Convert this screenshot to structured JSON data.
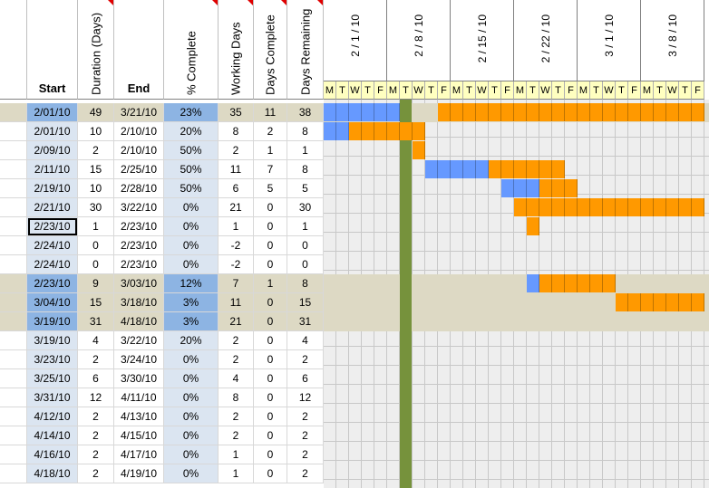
{
  "headers": {
    "start": "Start",
    "duration": "Duration (Days)",
    "end": "End",
    "pct_complete": "% Complete",
    "working_days": "Working Days",
    "days_complete": "Days Complete",
    "days_remaining": "Days Remaining"
  },
  "week_labels": [
    "2 / 1 / 10",
    "2 / 8 / 10",
    "2 / 15 / 10",
    "2 / 22 / 10",
    "3 / 1 / 10",
    "3 / 8 / 10"
  ],
  "day_letters": [
    "M",
    "T",
    "W",
    "T",
    "F",
    "M",
    "T",
    "W",
    "T",
    "F",
    "M",
    "T",
    "W",
    "T",
    "F",
    "M",
    "T",
    "W",
    "T",
    "F",
    "M",
    "T",
    "W",
    "T",
    "F",
    "M",
    "T",
    "W",
    "T",
    "F"
  ],
  "colors": {
    "blue_bar": "#6699ff",
    "orange_bar": "#ff9900",
    "today_line": "#76923c",
    "summary_row": "#ddd9c4",
    "day_header": "#ffffc0"
  },
  "rows": [
    {
      "start": "2/01/10",
      "duration": "49",
      "end": "3/21/10",
      "pct": "23%",
      "working": "35",
      "done": "11",
      "remaining": "38",
      "summary": true
    },
    {
      "start": "2/01/10",
      "duration": "10",
      "end": "2/10/10",
      "pct": "20%",
      "working": "8",
      "done": "2",
      "remaining": "8"
    },
    {
      "start": "2/09/10",
      "duration": "2",
      "end": "2/10/10",
      "pct": "50%",
      "working": "2",
      "done": "1",
      "remaining": "1"
    },
    {
      "start": "2/11/10",
      "duration": "15",
      "end": "2/25/10",
      "pct": "50%",
      "working": "11",
      "done": "7",
      "remaining": "8"
    },
    {
      "start": "2/19/10",
      "duration": "10",
      "end": "2/28/10",
      "pct": "50%",
      "working": "6",
      "done": "5",
      "remaining": "5"
    },
    {
      "start": "2/21/10",
      "duration": "30",
      "end": "3/22/10",
      "pct": "0%",
      "working": "21",
      "done": "0",
      "remaining": "30"
    },
    {
      "start": "2/23/10",
      "duration": "1",
      "end": "2/23/10",
      "pct": "0%",
      "working": "1",
      "done": "0",
      "remaining": "1",
      "selected": true
    },
    {
      "start": "2/24/10",
      "duration": "0",
      "end": "2/23/10",
      "pct": "0%",
      "working": "-2",
      "done": "0",
      "remaining": "0"
    },
    {
      "start": "2/24/10",
      "duration": "0",
      "end": "2/23/10",
      "pct": "0%",
      "working": "-2",
      "done": "0",
      "remaining": "0"
    },
    {
      "start": "2/23/10",
      "duration": "9",
      "end": "3/03/10",
      "pct": "12%",
      "working": "7",
      "done": "1",
      "remaining": "8",
      "summary": true
    },
    {
      "start": "3/04/10",
      "duration": "15",
      "end": "3/18/10",
      "pct": "3%",
      "working": "11",
      "done": "0",
      "remaining": "15",
      "summary": true
    },
    {
      "start": "3/19/10",
      "duration": "31",
      "end": "4/18/10",
      "pct": "3%",
      "working": "21",
      "done": "0",
      "remaining": "31",
      "summary": true
    },
    {
      "start": "3/19/10",
      "duration": "4",
      "end": "3/22/10",
      "pct": "20%",
      "working": "2",
      "done": "0",
      "remaining": "4"
    },
    {
      "start": "3/23/10",
      "duration": "2",
      "end": "3/24/10",
      "pct": "0%",
      "working": "2",
      "done": "0",
      "remaining": "2"
    },
    {
      "start": "3/25/10",
      "duration": "6",
      "end": "3/30/10",
      "pct": "0%",
      "working": "4",
      "done": "0",
      "remaining": "6"
    },
    {
      "start": "3/31/10",
      "duration": "12",
      "end": "4/11/10",
      "pct": "0%",
      "working": "8",
      "done": "0",
      "remaining": "12"
    },
    {
      "start": "4/12/10",
      "duration": "2",
      "end": "4/13/10",
      "pct": "0%",
      "working": "2",
      "done": "0",
      "remaining": "2"
    },
    {
      "start": "4/14/10",
      "duration": "2",
      "end": "4/15/10",
      "pct": "0%",
      "working": "2",
      "done": "0",
      "remaining": "2"
    },
    {
      "start": "4/16/10",
      "duration": "2",
      "end": "4/17/10",
      "pct": "0%",
      "working": "1",
      "done": "0",
      "remaining": "2"
    },
    {
      "start": "4/18/10",
      "duration": "2",
      "end": "4/19/10",
      "pct": "0%",
      "working": "1",
      "done": "0",
      "remaining": "2"
    }
  ],
  "bars": [
    {
      "row": 0,
      "blue_start_day": 0,
      "blue_days": 6,
      "orange_start_day": 9,
      "orange_days": 21
    },
    {
      "row": 1,
      "blue_start_day": 0,
      "blue_days": 2,
      "orange_start_day": 2,
      "orange_days": 6
    },
    {
      "row": 2,
      "blue_start_day": 0,
      "blue_days": 0,
      "orange_start_day": 7,
      "orange_days": 1
    },
    {
      "row": 3,
      "blue_start_day": 8,
      "blue_days": 5,
      "orange_start_day": 13,
      "orange_days": 6
    },
    {
      "row": 4,
      "blue_start_day": 14,
      "blue_days": 3,
      "orange_start_day": 17,
      "orange_days": 3
    },
    {
      "row": 5,
      "blue_start_day": 0,
      "blue_days": 0,
      "orange_start_day": 15,
      "orange_days": 15
    },
    {
      "row": 6,
      "blue_start_day": 0,
      "blue_days": 0,
      "orange_start_day": 16,
      "orange_days": 1
    },
    {
      "row": 9,
      "blue_start_day": 16,
      "blue_days": 1,
      "orange_start_day": 17,
      "orange_days": 6
    },
    {
      "row": 10,
      "blue_start_day": 0,
      "blue_days": 0,
      "orange_start_day": 23,
      "orange_days": 7
    }
  ]
}
